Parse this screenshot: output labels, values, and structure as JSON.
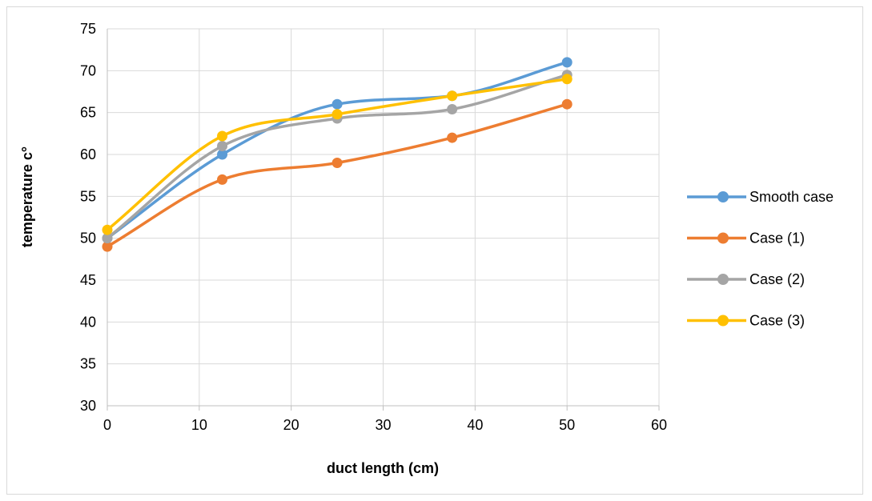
{
  "chart_data": {
    "type": "line",
    "title": "",
    "xlabel": "duct length (cm)",
    "ylabel": "temperature c°",
    "xlim": [
      0,
      60
    ],
    "ylim": [
      30,
      75
    ],
    "xticks": [
      "0",
      "10",
      "20",
      "30",
      "40",
      "50",
      "60"
    ],
    "yticks": [
      "30",
      "35",
      "40",
      "45",
      "50",
      "55",
      "60",
      "65",
      "70",
      "75"
    ],
    "grid": true,
    "smooth": true,
    "legend_position": "right",
    "x": [
      0,
      12.5,
      25,
      37.5,
      50
    ],
    "series": [
      {
        "name": "Smooth case",
        "color": "#5B9BD5",
        "values": [
          50,
          60,
          66,
          67,
          71
        ]
      },
      {
        "name": "Case (1)",
        "color": "#ED7D31",
        "values": [
          49,
          57,
          59,
          62,
          66
        ]
      },
      {
        "name": "Case (2)",
        "color": "#A5A5A5",
        "values": [
          50,
          61,
          64.3,
          65.4,
          69.5
        ]
      },
      {
        "name": "Case (3)",
        "color": "#FFC000",
        "values": [
          51,
          62.2,
          64.8,
          67,
          69
        ]
      }
    ]
  }
}
